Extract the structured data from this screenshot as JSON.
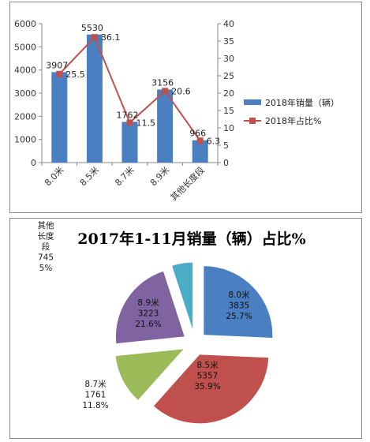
{
  "chart_data": [
    {
      "type": "bar+line",
      "categories": [
        "8.0米",
        "8.5米",
        "8.7米",
        "8.9米",
        "其他长度段"
      ],
      "series": [
        {
          "name": "2018年销量（辆）",
          "type": "bar",
          "axis": "left",
          "values": [
            3907,
            5530,
            1762,
            3156,
            966
          ],
          "color": "#4a7fc1"
        },
        {
          "name": "2018年占比%",
          "type": "line",
          "axis": "right",
          "values": [
            25.5,
            36.1,
            11.5,
            20.6,
            6.3
          ],
          "color": "#c0504d"
        }
      ],
      "ylim_left": [
        0,
        6000
      ],
      "yticks_left": [
        0,
        1000,
        2000,
        3000,
        4000,
        5000,
        6000
      ],
      "ylim_right": [
        0,
        40
      ],
      "yticks_right": [
        0,
        5,
        10,
        15,
        20,
        25,
        30,
        35,
        40
      ],
      "legend_position": "right",
      "grid": false
    },
    {
      "type": "pie",
      "title": "2017年1-11月销量（辆）占比%",
      "slices": [
        {
          "label": "8.0米",
          "value": 3835,
          "percent": "25.7%",
          "color": "#4a7fc1"
        },
        {
          "label": "8.5米",
          "value": 5357,
          "percent": "35.9%",
          "color": "#c0504d"
        },
        {
          "label": "8.7米",
          "value": 1761,
          "percent": "11.8%",
          "color": "#9bbb59"
        },
        {
          "label": "8.9米",
          "value": 3223,
          "percent": "21.6%",
          "color": "#8064a2"
        },
        {
          "label": "其他长度段",
          "value": 745,
          "percent": "5%",
          "color": "#4bacc6"
        }
      ],
      "exploded": true
    }
  ]
}
